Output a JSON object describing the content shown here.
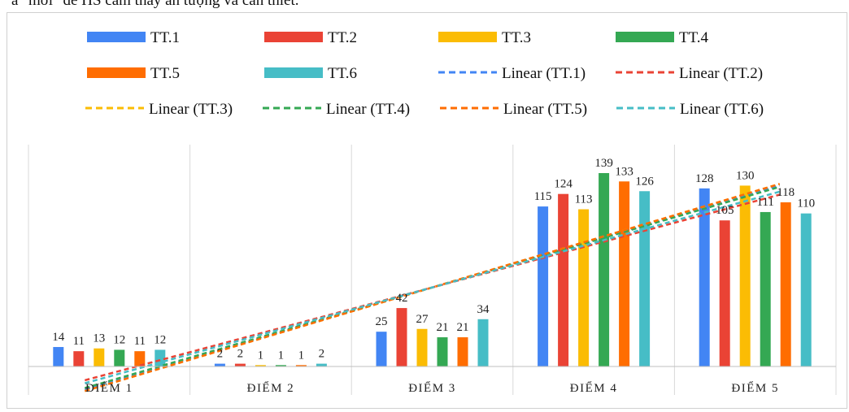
{
  "top_text": "a \"mới\" để HS cảm thấy ấn tượng và cần thiết.",
  "chart_data": {
    "type": "bar",
    "categories": [
      "ĐIỂM 1",
      "ĐIỂM 2",
      "ĐIỂM 3",
      "ĐIỂM 4",
      "ĐIỂM 5"
    ],
    "series": [
      {
        "name": "TT.1",
        "color": "#4285F4",
        "values": [
          14,
          2,
          25,
          115,
          128
        ]
      },
      {
        "name": "TT.2",
        "color": "#EA4335",
        "values": [
          11,
          2,
          42,
          124,
          105
        ]
      },
      {
        "name": "TT.3",
        "color": "#FBBC04",
        "values": [
          13,
          1,
          27,
          113,
          130
        ]
      },
      {
        "name": "TT.4",
        "color": "#34A853",
        "values": [
          12,
          1,
          21,
          139,
          111
        ]
      },
      {
        "name": "TT.5",
        "color": "#FF6D01",
        "values": [
          11,
          1,
          21,
          133,
          118
        ]
      },
      {
        "name": "TT.6",
        "color": "#46BDC6",
        "values": [
          12,
          2,
          34,
          126,
          110
        ]
      }
    ],
    "trendlines": [
      {
        "name": "Linear (TT.1)",
        "color": "#4285F4"
      },
      {
        "name": "Linear (TT.2)",
        "color": "#EA4335"
      },
      {
        "name": "Linear (TT.3)",
        "color": "#FBBC04"
      },
      {
        "name": "Linear (TT.4)",
        "color": "#34A853"
      },
      {
        "name": "Linear (TT.5)",
        "color": "#FF6D01"
      },
      {
        "name": "Linear (TT.6)",
        "color": "#46BDC6"
      }
    ],
    "ylim": [
      -14,
      160
    ],
    "legend_position": "top",
    "grid": false
  }
}
